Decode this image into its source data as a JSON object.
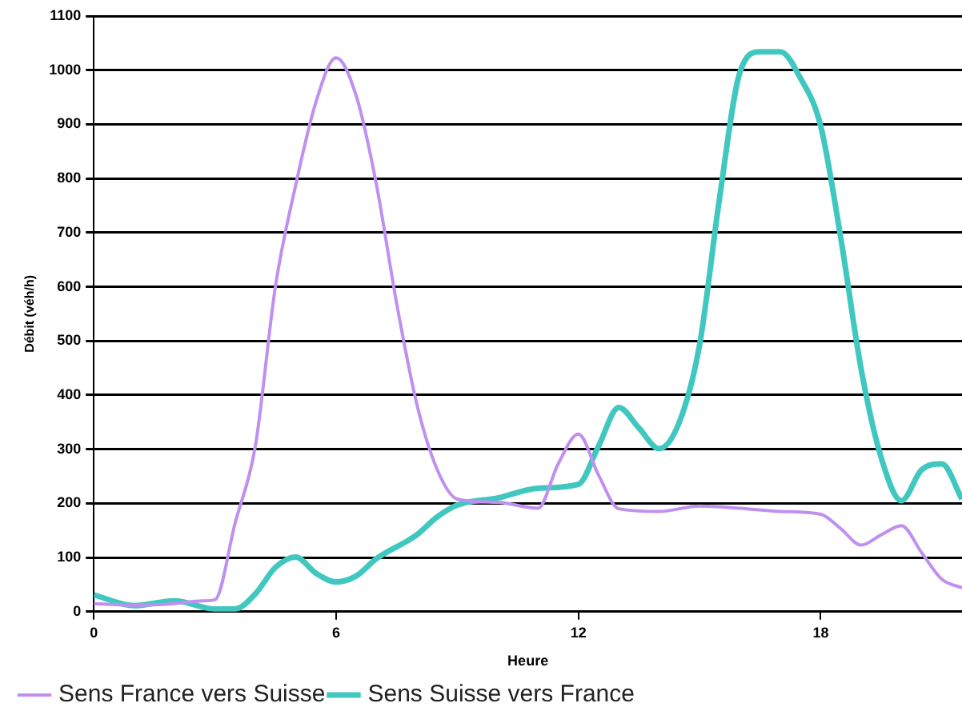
{
  "chart_data": {
    "type": "line",
    "xlabel": "Heure",
    "ylabel": "Débit (véh/h)",
    "xlim": [
      0,
      21.5
    ],
    "xticks": [
      0,
      6,
      12,
      18
    ],
    "ylim": [
      0,
      1100
    ],
    "yticks": [
      0,
      100,
      200,
      300,
      400,
      500,
      600,
      700,
      800,
      900,
      1000,
      1100
    ],
    "grid": "y",
    "legend": "bottom left",
    "marker": "none",
    "line_style": "solid",
    "series": [
      {
        "name": "Sens France vers Suisse",
        "color": "#c090f0",
        "x": [
          0,
          1,
          2,
          2.7,
          3,
          3.5,
          4,
          4.5,
          5,
          5.5,
          6,
          6.5,
          7,
          7.5,
          8,
          8.5,
          9,
          10,
          11,
          11.5,
          12,
          12.5,
          13,
          14,
          15,
          16,
          17,
          18,
          18.5,
          19,
          19.5,
          20,
          20.5,
          21,
          21.5
        ],
        "values": [
          15,
          12,
          15,
          20,
          22,
          164,
          306,
          602,
          788,
          941,
          1023,
          952,
          788,
          569,
          383,
          263,
          208,
          202,
          191,
          273,
          328,
          252,
          190,
          185,
          195,
          191,
          185,
          180,
          153,
          123,
          142,
          159,
          109,
          60,
          44
        ]
      },
      {
        "name": "Sens Suisse vers France",
        "color": "#40c8c0",
        "x": [
          0,
          1,
          2,
          3,
          3.5,
          4,
          4.5,
          5,
          5.5,
          6,
          6.5,
          7,
          8,
          8.5,
          9,
          10,
          11,
          12,
          12.5,
          13,
          13.5,
          14,
          14.5,
          15,
          15.5,
          16,
          16.5,
          17,
          17.5,
          18,
          18.5,
          19,
          19.5,
          20,
          20.5,
          21,
          21.5
        ],
        "values": [
          31,
          11,
          20,
          5,
          5,
          33,
          82,
          101,
          71,
          55,
          66,
          98,
          142,
          175,
          197,
          210,
          228,
          235,
          306,
          377,
          339,
          301,
          350,
          492,
          766,
          996,
          1034,
          1034,
          985,
          897,
          689,
          449,
          284,
          205,
          262,
          273,
          208
        ]
      }
    ]
  }
}
